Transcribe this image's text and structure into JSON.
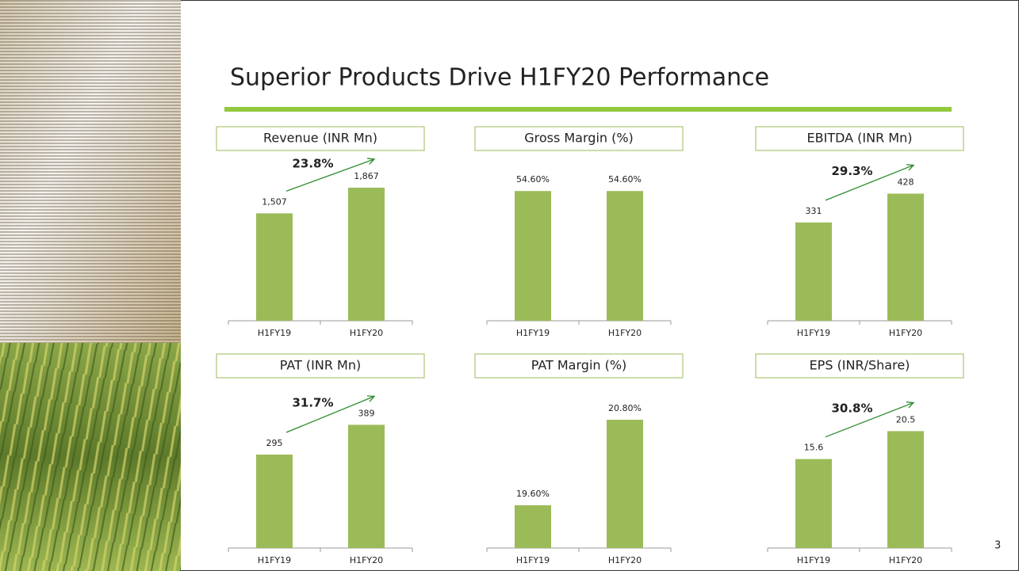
{
  "slide": {
    "title": "Superior Products Drive H1FY20 Performance",
    "page": "3"
  },
  "chart_data": [
    {
      "type": "bar",
      "title": "Revenue (INR Mn)",
      "categories": [
        "H1FY19",
        "H1FY20"
      ],
      "values": [
        1507,
        1867
      ],
      "value_labels": [
        "1,507",
        "1,867"
      ],
      "ylim": [
        0,
        2000
      ],
      "color": "#9bbb59",
      "annotation": "23.8%"
    },
    {
      "type": "bar",
      "title": "Gross Margin (%)",
      "categories": [
        "H1FY19",
        "H1FY20"
      ],
      "values": [
        54.6,
        54.6
      ],
      "value_labels": [
        "54.60%",
        "54.60%"
      ],
      "ylim": [
        0,
        60
      ],
      "color": "#9bbb59"
    },
    {
      "type": "bar",
      "title": "EBITDA (INR Mn)",
      "categories": [
        "H1FY19",
        "H1FY20"
      ],
      "values": [
        331,
        428
      ],
      "ylim": [
        0,
        480
      ],
      "color": "#9bbb59",
      "annotation": "29.3%"
    },
    {
      "type": "bar",
      "title": "PAT (INR Mn)",
      "categories": [
        "H1FY19",
        "H1FY20"
      ],
      "values": [
        295,
        389
      ],
      "ylim": [
        0,
        450
      ],
      "color": "#9bbb59",
      "annotation": "31.7%"
    },
    {
      "type": "bar",
      "title": "PAT Margin (%)",
      "categories": [
        "H1FY19",
        "H1FY20"
      ],
      "values": [
        19.6,
        20.8
      ],
      "value_labels": [
        "19.60%",
        "20.80%"
      ],
      "ylim": [
        19,
        21
      ],
      "color": "#9bbb59"
    },
    {
      "type": "bar",
      "title": "EPS (INR/Share)",
      "categories": [
        "H1FY19",
        "H1FY20"
      ],
      "values": [
        15.6,
        20.5
      ],
      "ylim": [
        0,
        25
      ],
      "color": "#9bbb59",
      "annotation": "30.8%"
    }
  ]
}
